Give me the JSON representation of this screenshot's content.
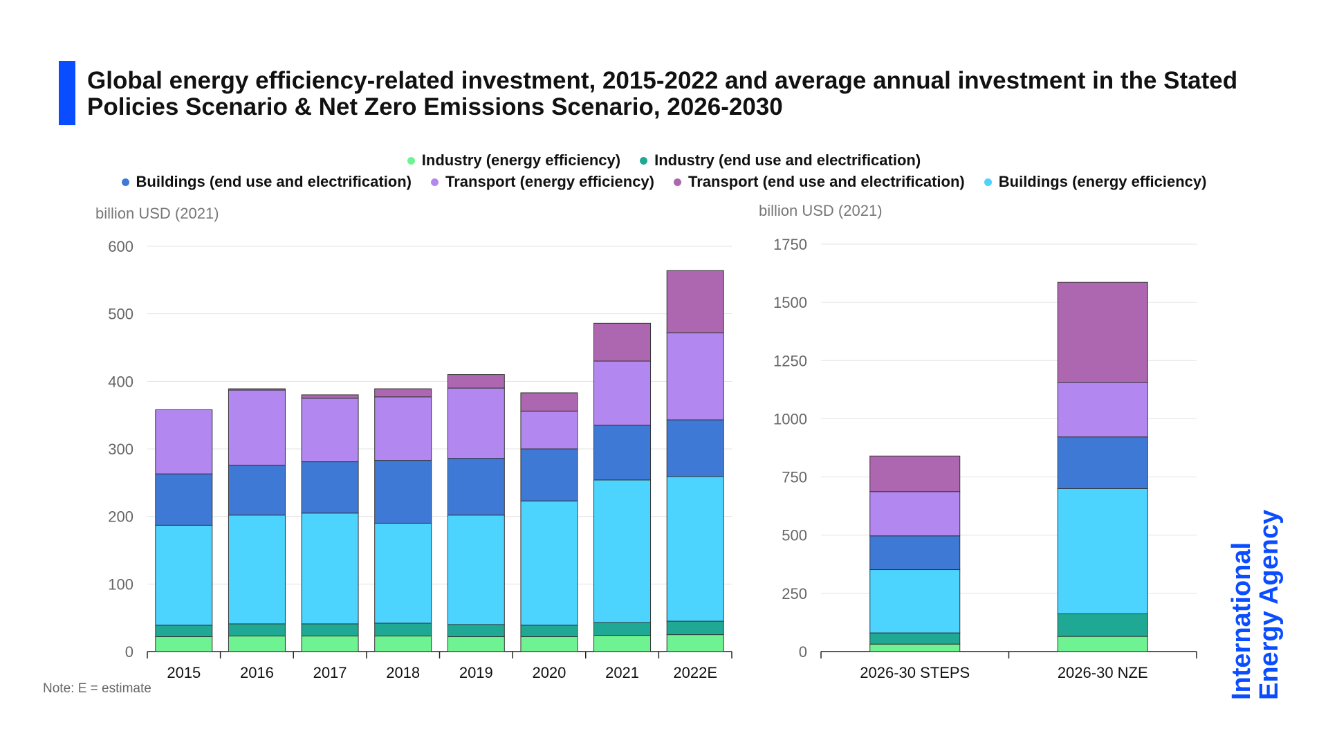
{
  "title": "Global energy efficiency-related investment, 2015-2022 and average annual investment in the Stated Policies Scenario & Net Zero Emissions Scenario, 2026-2030",
  "note": "Note: E = estimate",
  "logo": {
    "line1": "International",
    "line2": "Energy Agency"
  },
  "legend": {
    "row1": [
      {
        "label": "Industry (energy efficiency)",
        "color": "#6ff291"
      },
      {
        "label": "Industry (end use and electrification)",
        "color": "#1fa893"
      }
    ],
    "row2": [
      {
        "label": "Buildings (end use and electrification)",
        "color": "#3f79d6"
      },
      {
        "label": "Transport (energy efficiency)",
        "color": "#b387f0"
      },
      {
        "label": "Transport (end use and electrification)",
        "color": "#ad67b0"
      },
      {
        "label": "Buildings (energy efficiency)",
        "color": "#4cd4ff"
      }
    ]
  },
  "chart_data": [
    {
      "type": "bar",
      "stacked": true,
      "ylabel": "billion USD (2021)",
      "ylim": [
        0,
        600
      ],
      "yticks": [
        0,
        100,
        200,
        300,
        400,
        500,
        600
      ],
      "categories": [
        "2015",
        "2016",
        "2017",
        "2018",
        "2019",
        "2020",
        "2021",
        "2022E"
      ],
      "series": [
        {
          "name": "Industry (energy efficiency)",
          "color": "#6ff291",
          "values": [
            22,
            23,
            23,
            23,
            22,
            22,
            24,
            25
          ]
        },
        {
          "name": "Industry (end use and electrification)",
          "color": "#1fa893",
          "values": [
            17,
            18,
            18,
            19,
            18,
            17,
            19,
            20
          ]
        },
        {
          "name": "Buildings (energy efficiency)",
          "color": "#4cd4ff",
          "values": [
            148,
            161,
            164,
            148,
            162,
            184,
            211,
            214
          ]
        },
        {
          "name": "Buildings (end use and electrification)",
          "color": "#3f79d6",
          "values": [
            76,
            74,
            76,
            93,
            84,
            77,
            81,
            84
          ]
        },
        {
          "name": "Transport (energy efficiency)",
          "color": "#b387f0",
          "values": [
            95,
            111,
            94,
            94,
            104,
            56,
            95,
            129
          ]
        },
        {
          "name": "Transport (end use and electrification)",
          "color": "#ad67b0",
          "values": [
            0,
            2,
            5,
            12,
            20,
            27,
            56,
            92
          ]
        }
      ]
    },
    {
      "type": "bar",
      "stacked": true,
      "ylabel": "billion USD (2021)",
      "ylim": [
        0,
        1750
      ],
      "yticks": [
        0,
        250,
        500,
        750,
        1000,
        1250,
        1500,
        1750
      ],
      "categories": [
        "2026-30 STEPS",
        "2026-30 NZE"
      ],
      "series": [
        {
          "name": "Industry (energy efficiency)",
          "color": "#6ff291",
          "values": [
            32,
            65
          ]
        },
        {
          "name": "Industry (end use and electrification)",
          "color": "#1fa893",
          "values": [
            48,
            97
          ]
        },
        {
          "name": "Buildings (energy efficiency)",
          "color": "#4cd4ff",
          "values": [
            272,
            538
          ]
        },
        {
          "name": "Buildings (end use and electrification)",
          "color": "#3f79d6",
          "values": [
            145,
            222
          ]
        },
        {
          "name": "Transport (energy efficiency)",
          "color": "#b387f0",
          "values": [
            190,
            234
          ]
        },
        {
          "name": "Transport (end use and electrification)",
          "color": "#ad67b0",
          "values": [
            153,
            430
          ]
        }
      ]
    }
  ]
}
